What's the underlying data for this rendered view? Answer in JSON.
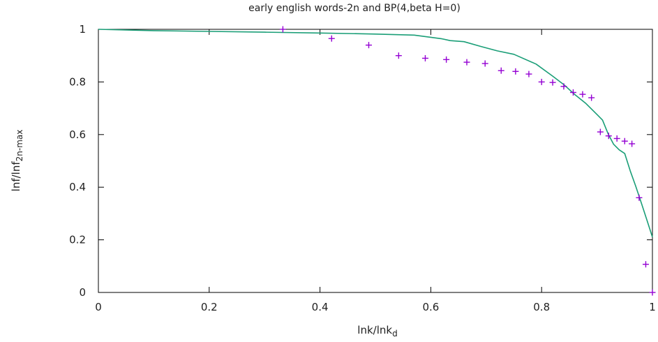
{
  "chart_data": {
    "type": "line",
    "title": "early english words-2n and BP(4,beta H=0)",
    "xlabel": {
      "main": "lnk/lnk",
      "sub": "d"
    },
    "ylabel": {
      "main": "lnf/lnf",
      "sub": "2n-max"
    },
    "xlim": [
      0,
      1
    ],
    "ylim": [
      0,
      1
    ],
    "xticks": [
      0,
      0.2,
      0.4,
      0.6,
      0.8,
      1
    ],
    "yticks": [
      0,
      0.2,
      0.4,
      0.6,
      0.8,
      1
    ],
    "xtick_labels": [
      "0",
      "0.2",
      "0.4",
      "0.6",
      "0.8",
      "1"
    ],
    "ytick_labels": [
      "0",
      "0.2",
      "0.4",
      "0.6",
      "0.8",
      "1"
    ],
    "grid": false,
    "series": [
      {
        "kind": "line",
        "color": "#1a9e77",
        "x": [
          0,
          0.1,
          0.2,
          0.3,
          0.4,
          0.5,
          0.57,
          0.62,
          0.635,
          0.66,
          0.69,
          0.72,
          0.75,
          0.79,
          0.82,
          0.84,
          0.86,
          0.88,
          0.9,
          0.91,
          0.92,
          0.93,
          0.94,
          0.95,
          0.96,
          0.97,
          0.98,
          0.99,
          1.0
        ],
        "y": [
          1.0,
          0.995,
          0.992,
          0.989,
          0.986,
          0.982,
          0.978,
          0.964,
          0.957,
          0.953,
          0.935,
          0.918,
          0.905,
          0.868,
          0.822,
          0.79,
          0.752,
          0.718,
          0.676,
          0.655,
          0.603,
          0.563,
          0.542,
          0.528,
          0.462,
          0.403,
          0.34,
          0.275,
          0.21
        ]
      },
      {
        "kind": "points",
        "marker": "+",
        "color": "#9400d3",
        "x": [
          0.333,
          0.421,
          0.488,
          0.542,
          0.59,
          0.628,
          0.665,
          0.698,
          0.727,
          0.753,
          0.777,
          0.8,
          0.82,
          0.84,
          0.857,
          0.874,
          0.89,
          0.906,
          0.921,
          0.936,
          0.95,
          0.963,
          0.976,
          0.988,
          1.0
        ],
        "y": [
          1.0,
          0.965,
          0.94,
          0.9,
          0.89,
          0.885,
          0.875,
          0.87,
          0.843,
          0.84,
          0.83,
          0.8,
          0.798,
          0.783,
          0.76,
          0.753,
          0.74,
          0.61,
          0.595,
          0.585,
          0.575,
          0.565,
          0.36,
          0.107,
          0.0
        ]
      }
    ]
  }
}
